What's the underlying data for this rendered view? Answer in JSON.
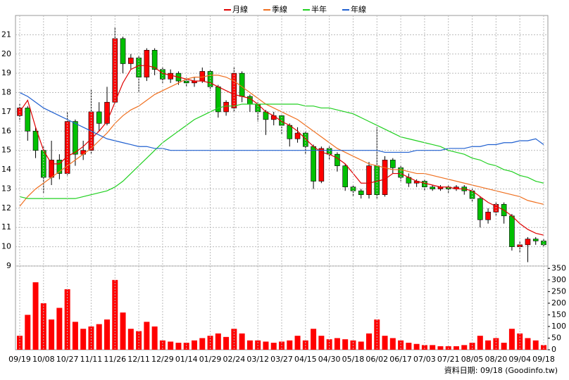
{
  "chart_data": [
    {
      "type": "candlestick",
      "open": [
        16.8,
        17.2,
        16.0,
        15.0,
        13.6,
        14.5,
        13.8,
        16.5,
        14.8,
        15.0,
        17.0,
        16.4,
        17.5,
        20.8,
        19.5,
        19.8,
        18.8,
        20.2,
        19.2,
        18.7,
        19.0,
        18.6,
        18.5,
        18.6,
        19.1,
        18.3,
        17.0,
        17.2,
        19.0,
        17.8,
        17.4,
        17.0,
        16.6,
        16.8,
        16.3,
        15.6,
        15.9,
        15.2,
        13.4,
        15.1,
        14.8,
        14.2,
        13.1,
        12.9,
        12.7,
        14.2,
        12.7,
        14.5,
        14.1,
        13.6,
        13.3,
        13.4,
        13.1,
        13.0,
        13.1,
        13.0,
        13.1,
        12.9,
        12.5,
        11.4,
        11.8,
        12.2,
        11.6,
        10.0,
        10.1,
        10.4,
        10.3
      ],
      "high": [
        17.4,
        17.3,
        16.2,
        15.2,
        15.5,
        14.8,
        17.0,
        16.6,
        15.5,
        18.2,
        17.5,
        18.3,
        21.4,
        20.9,
        20.0,
        19.9,
        20.3,
        20.3,
        19.3,
        19.2,
        19.1,
        18.8,
        18.8,
        19.3,
        19.2,
        18.4,
        17.6,
        19.3,
        19.1,
        17.9,
        17.5,
        17.1,
        17.0,
        16.9,
        16.4,
        16.2,
        16.0,
        15.3,
        15.2,
        15.2,
        14.9,
        14.3,
        13.2,
        13.0,
        14.4,
        16.2,
        14.7,
        14.6,
        14.2,
        13.8,
        13.5,
        13.5,
        13.2,
        13.2,
        13.2,
        13.2,
        13.2,
        13.0,
        12.6,
        12.0,
        12.3,
        12.3,
        11.7,
        10.3,
        10.5,
        10.5,
        10.4
      ],
      "low": [
        16.5,
        15.5,
        14.6,
        12.8,
        13.2,
        13.5,
        13.7,
        14.2,
        14.5,
        14.8,
        16.0,
        16.3,
        17.4,
        19.0,
        19.2,
        18.0,
        18.6,
        18.9,
        18.5,
        18.5,
        18.4,
        18.3,
        18.3,
        18.5,
        18.1,
        16.7,
        16.8,
        17.0,
        17.5,
        17.0,
        16.5,
        15.8,
        16.3,
        15.8,
        15.2,
        15.4,
        14.8,
        13.0,
        13.3,
        14.5,
        13.9,
        12.9,
        12.6,
        12.5,
        12.5,
        12.5,
        12.6,
        13.8,
        13.4,
        13.1,
        13.1,
        12.9,
        12.9,
        12.9,
        12.8,
        12.9,
        12.7,
        12.3,
        11.0,
        11.2,
        11.6,
        11.2,
        9.8,
        9.7,
        9.2,
        10.1,
        10.0
      ],
      "close": [
        17.2,
        16.0,
        15.0,
        13.6,
        14.5,
        13.8,
        16.5,
        14.8,
        15.0,
        17.0,
        16.4,
        17.5,
        20.8,
        19.5,
        19.8,
        18.8,
        20.2,
        19.2,
        18.7,
        19.0,
        18.6,
        18.5,
        18.6,
        19.1,
        18.3,
        17.0,
        17.5,
        19.0,
        17.8,
        17.4,
        17.0,
        16.6,
        16.8,
        16.3,
        15.6,
        15.9,
        15.2,
        13.4,
        15.1,
        14.8,
        14.2,
        13.1,
        12.9,
        12.7,
        14.2,
        12.7,
        14.5,
        14.1,
        13.6,
        13.3,
        13.4,
        13.1,
        13.0,
        13.1,
        13.0,
        13.1,
        12.9,
        12.5,
        11.4,
        11.8,
        12.2,
        11.6,
        10.0,
        10.1,
        10.4,
        10.3,
        10.1
      ],
      "up_color": "#ff0000",
      "down_color": "#00c000",
      "series": [
        {
          "name": "月線",
          "color": "#e00000",
          "values": [
            17.0,
            17.6,
            16.2,
            15.0,
            14.3,
            14.3,
            14.7,
            14.9,
            15.2,
            15.6,
            16.0,
            16.5,
            17.5,
            18.5,
            19.2,
            19.4,
            19.4,
            19.3,
            19.0,
            18.9,
            18.8,
            18.7,
            18.6,
            18.6,
            18.5,
            18.3,
            18.1,
            17.9,
            17.8,
            17.7,
            17.4,
            17.0,
            16.8,
            16.5,
            16.3,
            16.0,
            15.6,
            15.2,
            14.9,
            14.8,
            14.6,
            14.3,
            13.8,
            13.3,
            13.3,
            13.4,
            13.5,
            13.8,
            13.8,
            13.6,
            13.4,
            13.3,
            13.2,
            13.1,
            13.1,
            13.0,
            13.0,
            12.9,
            12.6,
            12.3,
            12.1,
            11.9,
            11.6,
            11.2,
            10.9,
            10.7,
            10.6
          ]
        },
        {
          "name": "季線",
          "color": "#f07020",
          "values": [
            12.1,
            12.6,
            13.0,
            13.3,
            13.6,
            13.9,
            14.2,
            14.5,
            14.8,
            15.1,
            15.5,
            15.9,
            16.4,
            16.8,
            17.1,
            17.3,
            17.6,
            17.9,
            18.1,
            18.3,
            18.5,
            18.7,
            18.8,
            18.8,
            18.9,
            18.9,
            18.8,
            18.6,
            18.3,
            18.0,
            17.7,
            17.4,
            17.2,
            17.0,
            16.8,
            16.6,
            16.3,
            16.0,
            15.7,
            15.4,
            15.1,
            14.9,
            14.7,
            14.5,
            14.3,
            14.2,
            14.1,
            14.0,
            14.0,
            13.9,
            13.8,
            13.8,
            13.7,
            13.6,
            13.5,
            13.4,
            13.3,
            13.2,
            13.1,
            13.0,
            12.9,
            12.8,
            12.7,
            12.6,
            12.4,
            12.3,
            12.2
          ]
        },
        {
          "name": "半年",
          "color": "#20d020",
          "values": [
            12.6,
            12.5,
            12.5,
            12.5,
            12.5,
            12.5,
            12.5,
            12.5,
            12.6,
            12.7,
            12.8,
            12.9,
            13.1,
            13.4,
            13.8,
            14.2,
            14.6,
            15.0,
            15.4,
            15.7,
            16.0,
            16.3,
            16.6,
            16.8,
            17.0,
            17.2,
            17.3,
            17.3,
            17.4,
            17.4,
            17.4,
            17.4,
            17.4,
            17.4,
            17.4,
            17.4,
            17.3,
            17.3,
            17.2,
            17.2,
            17.1,
            17.0,
            16.9,
            16.7,
            16.5,
            16.3,
            16.1,
            15.9,
            15.7,
            15.6,
            15.5,
            15.4,
            15.3,
            15.2,
            15.0,
            14.9,
            14.8,
            14.6,
            14.5,
            14.3,
            14.2,
            14.0,
            13.9,
            13.7,
            13.6,
            13.4,
            13.3
          ]
        },
        {
          "name": "年線",
          "color": "#2060d0",
          "values": [
            18.0,
            17.8,
            17.5,
            17.2,
            17.0,
            16.8,
            16.6,
            16.4,
            16.2,
            16.0,
            15.8,
            15.6,
            15.5,
            15.4,
            15.3,
            15.2,
            15.2,
            15.1,
            15.1,
            15.0,
            15.0,
            15.0,
            15.0,
            15.0,
            15.0,
            15.0,
            15.0,
            15.0,
            15.0,
            15.0,
            15.0,
            15.0,
            15.0,
            15.0,
            15.0,
            15.0,
            15.0,
            15.0,
            15.0,
            15.0,
            15.0,
            15.0,
            15.0,
            15.0,
            15.0,
            15.0,
            14.9,
            14.9,
            14.9,
            14.9,
            15.0,
            15.0,
            15.0,
            15.0,
            15.1,
            15.1,
            15.1,
            15.2,
            15.2,
            15.3,
            15.3,
            15.4,
            15.4,
            15.5,
            15.5,
            15.6,
            15.3
          ]
        }
      ],
      "ylim": [
        9,
        22
      ],
      "yticks": [
        9,
        10,
        11,
        12,
        13,
        14,
        15,
        16,
        17,
        18,
        19,
        20,
        21
      ],
      "grid": true
    },
    {
      "type": "bar",
      "categories": [
        "09/19",
        null,
        null,
        "10/08",
        null,
        null,
        "10/27",
        null,
        null,
        "11/11",
        null,
        null,
        "11/26",
        null,
        null,
        "12/11",
        null,
        null,
        "12/29",
        null,
        null,
        "01/14",
        null,
        null,
        "01/29",
        null,
        null,
        "02/24",
        null,
        null,
        "03/12",
        null,
        null,
        "03/27",
        null,
        null,
        "04/15",
        null,
        null,
        "04/30",
        null,
        null,
        "05/18",
        null,
        null,
        "06/02",
        null,
        null,
        "06/17",
        null,
        null,
        "07/03",
        null,
        null,
        "07/21",
        null,
        null,
        "08/05",
        null,
        null,
        "08/20",
        null,
        null,
        "09/04",
        null,
        null,
        "09/18"
      ],
      "values": [
        60,
        150,
        290,
        200,
        130,
        180,
        260,
        120,
        90,
        100,
        110,
        130,
        300,
        160,
        90,
        80,
        120,
        100,
        40,
        35,
        30,
        30,
        40,
        50,
        60,
        70,
        55,
        90,
        70,
        40,
        40,
        35,
        30,
        35,
        40,
        60,
        40,
        90,
        60,
        45,
        50,
        45,
        40,
        35,
        70,
        130,
        60,
        50,
        40,
        30,
        25,
        20,
        20,
        15,
        15,
        15,
        20,
        30,
        60,
        40,
        50,
        30,
        90,
        70,
        50,
        40,
        20
      ],
      "color": "#ff0000",
      "ylim": [
        0,
        360
      ],
      "yticks": [
        0,
        50,
        100,
        150,
        200,
        250,
        300,
        350
      ],
      "grid": true
    }
  ],
  "source": "資料日期: 09/18 (Goodinfo.tw)"
}
